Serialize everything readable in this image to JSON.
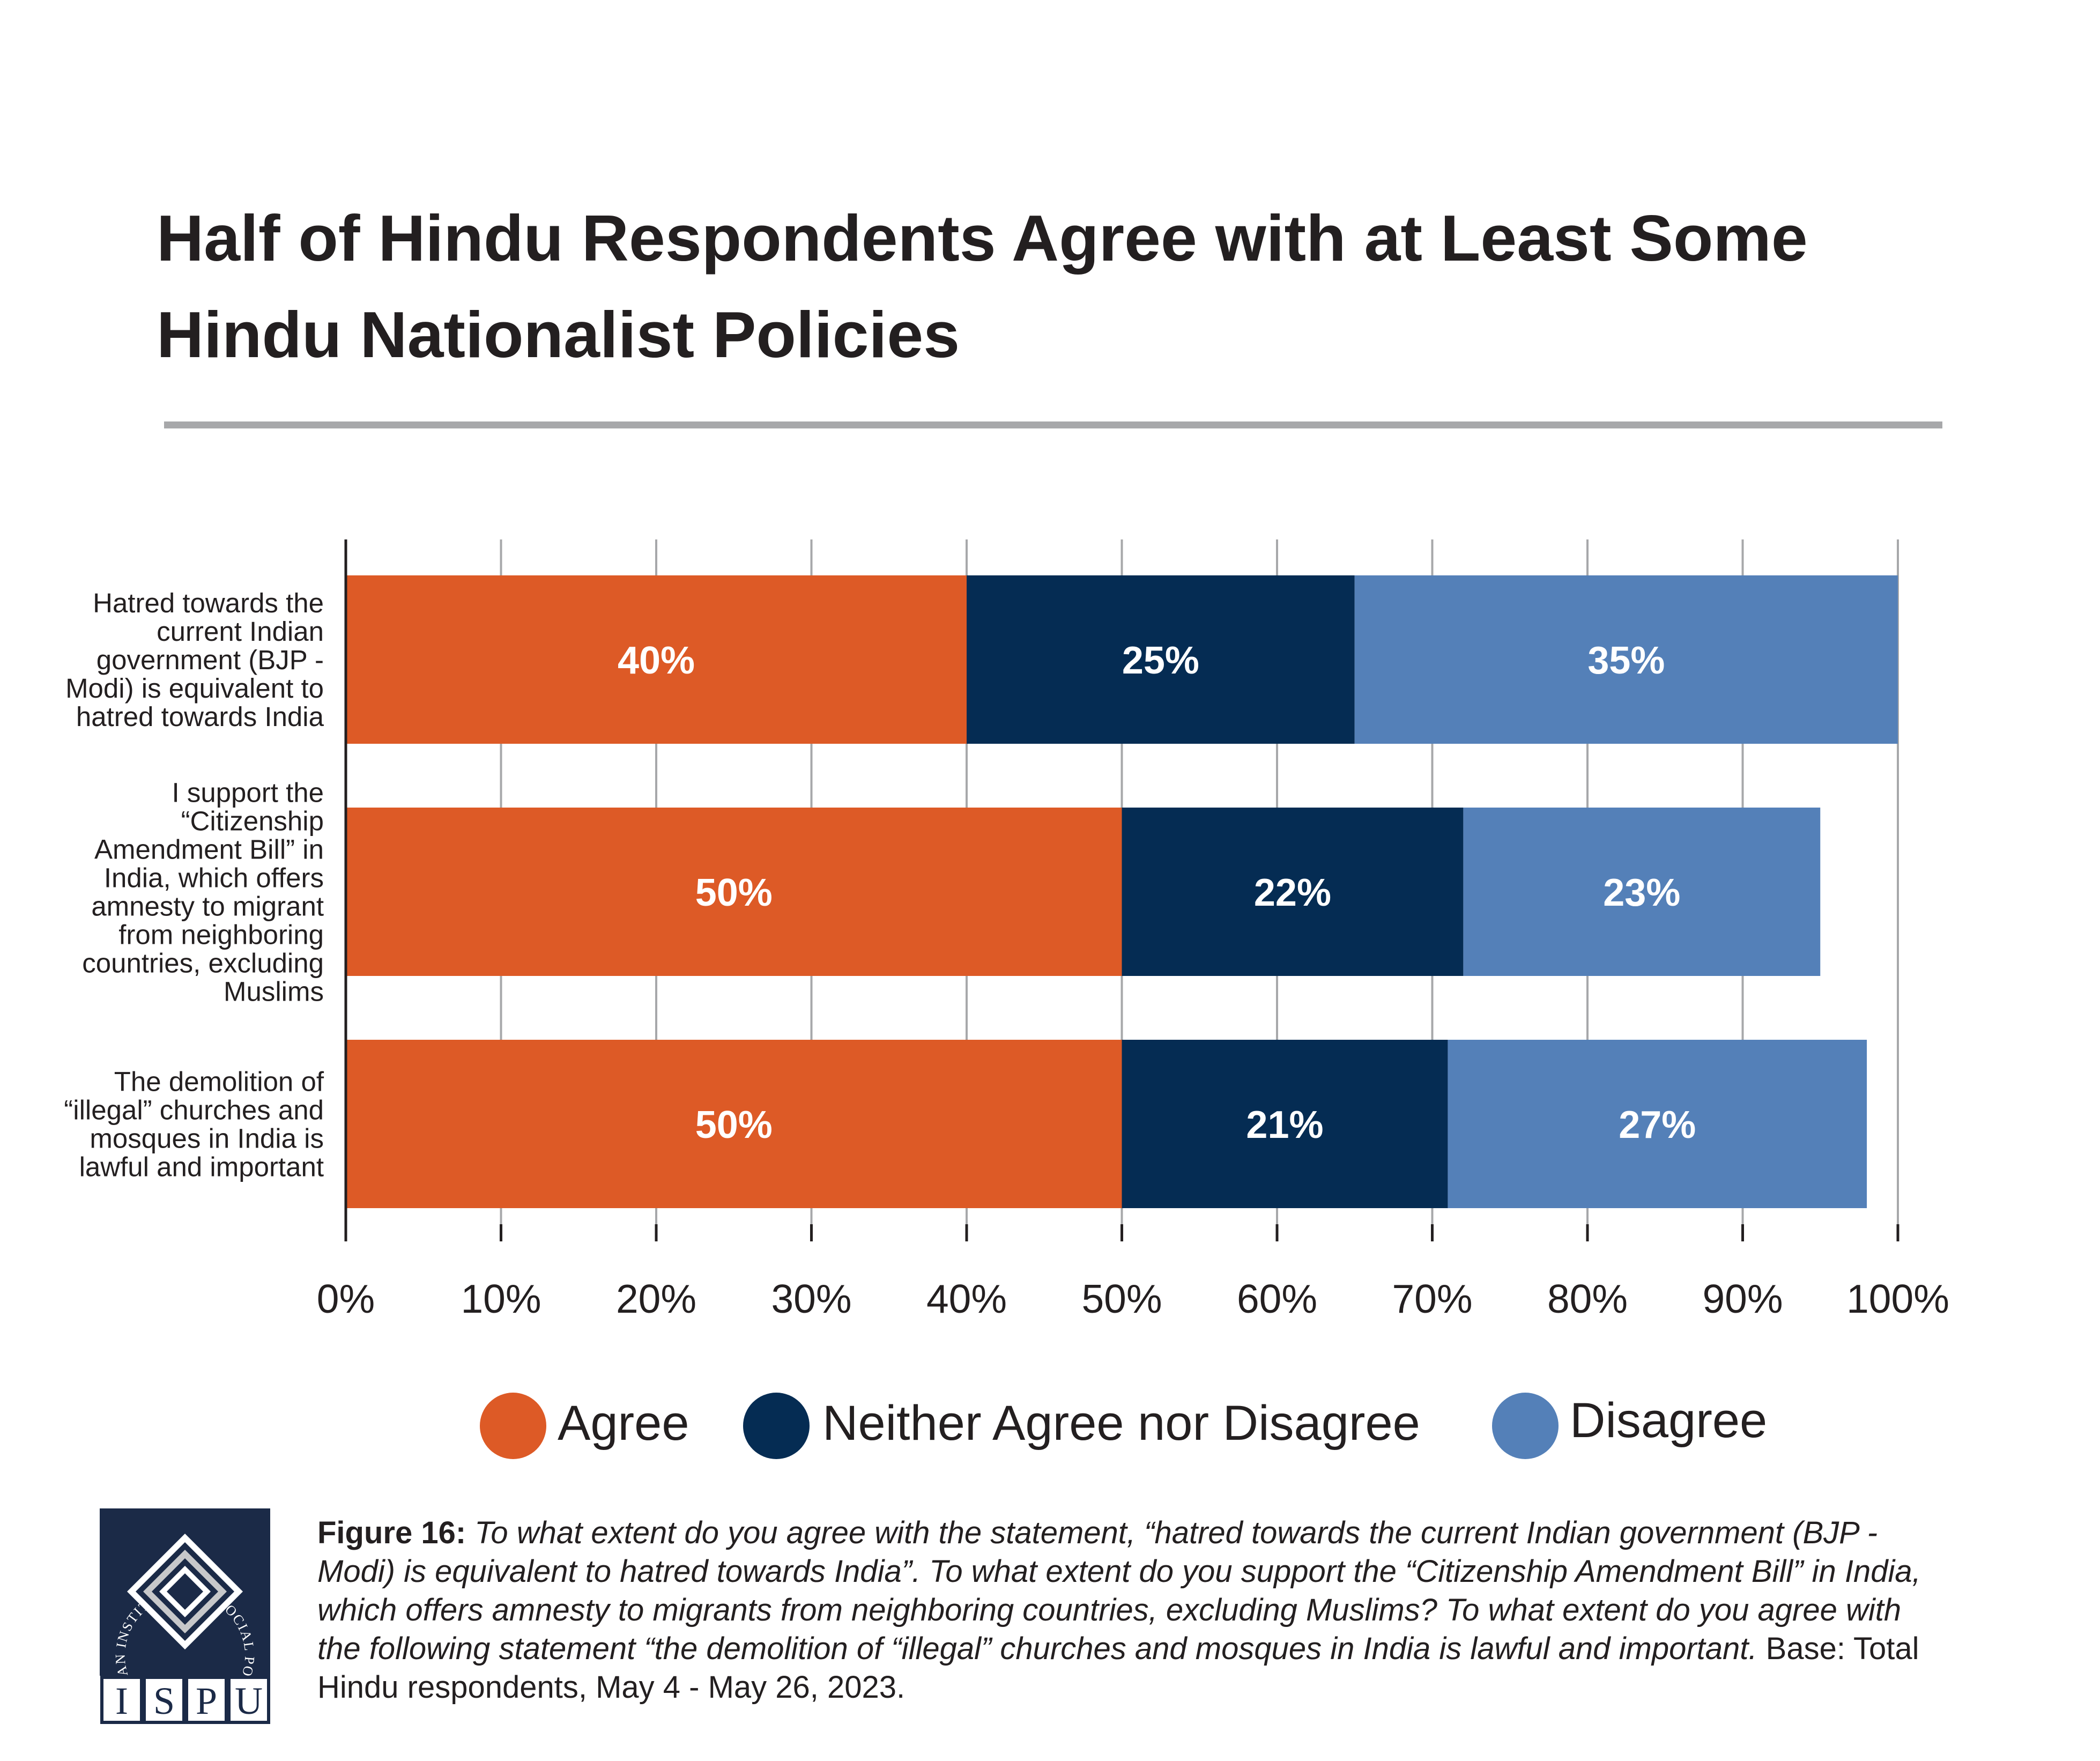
{
  "title_lines": [
    "Half of Hindu Respondents Agree with at Least Some",
    "Hindu Nationalist Policies"
  ],
  "colors": {
    "agree": "#dd5a26",
    "neither": "#052c53",
    "disagree": "#5480b8",
    "rule": "#a7a8aa",
    "grid": "#a7a8aa",
    "text": "#231f20"
  },
  "chart_data": {
    "type": "bar",
    "orientation": "horizontal",
    "stacked": true,
    "categories": [
      [
        "Hatred towards the",
        "current Indian",
        "government (BJP -",
        "Modi) is equivalent to",
        "hatred towards India"
      ],
      [
        "I support the",
        "“Citizenship",
        "Amendment Bill” in",
        "India, which offers",
        "amnesty to migrant",
        "from neighboring",
        "countries, excluding",
        "Muslims"
      ],
      [
        "The demolition of",
        "“illegal” churches and",
        "mosques in India is",
        "lawful and important"
      ]
    ],
    "series": [
      {
        "name": "Agree",
        "values": [
          40,
          50,
          50
        ],
        "labels": [
          "40%",
          "50%",
          "50%"
        ]
      },
      {
        "name": "Neither Agree nor Disagree",
        "values": [
          25,
          22,
          21
        ],
        "labels": [
          "25%",
          "22%",
          "21%"
        ]
      },
      {
        "name": "Disagree",
        "values": [
          35,
          23,
          27
        ],
        "labels": [
          "35%",
          "23%",
          "27%"
        ]
      }
    ],
    "xlim": [
      0,
      100
    ],
    "xticks": [
      "0%",
      "10%",
      "20%",
      "30%",
      "40%",
      "50%",
      "60%",
      "70%",
      "80%",
      "90%",
      "100%"
    ],
    "grid": true,
    "legend_position": "bottom"
  },
  "logo": {
    "arc_text": "INSTITUTE FOR SOCIAL POLICY AND UNDERSTANDING",
    "letters": [
      "I",
      "S",
      "P",
      "U"
    ]
  },
  "footnote": {
    "figure_label": "Figure 16:",
    "lines": [
      [
        {
          "t": "Figure 16: ",
          "s": "b"
        },
        {
          "t": "To what extent do you agree with the statement, “hatred towards the current Indian government (BJP -",
          "s": "i"
        }
      ],
      [
        {
          "t": "Modi) is equivalent to hatred towards India”. To what extent do you support the “Citizenship Amendment Bill” in India,",
          "s": "i"
        }
      ],
      [
        {
          "t": "which offers amnesty to migrants from neighboring countries, excluding Muslims? To what extent do you agree with",
          "s": "i"
        }
      ],
      [
        {
          "t": "the following statement “the demolition of “illegal” churches and mosques in India is lawful and important.",
          "s": "i"
        },
        {
          "t": " Base: Total",
          "s": "n"
        }
      ],
      [
        {
          "t": "Hindu respondents, May 4 - May 26, 2023.",
          "s": "n"
        }
      ]
    ]
  }
}
